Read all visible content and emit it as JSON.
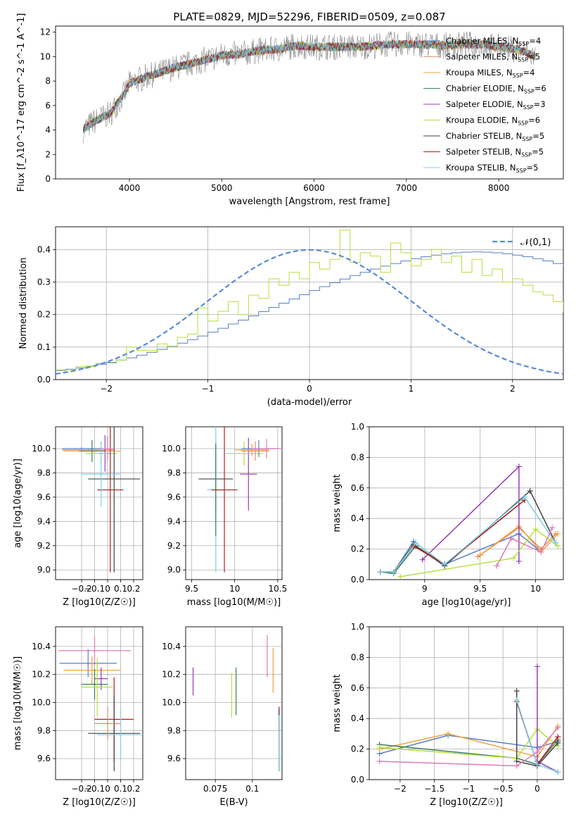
{
  "title": "PLATE=0829, MJD=52296, FIBERID=0509, z=0.087",
  "colors": {
    "Chabrier MILES": "#5a7fc8",
    "Salpeter MILES": "#e08c6a",
    "Kroupa MILES": "#f0a33a",
    "Chabrier ELODIE": "#3c7f5a",
    "Salpeter ELODIE": "#9a3ab4",
    "Kroupa ELODIE": "#b4e03c",
    "Chabrier STELIB": "#444444",
    "Salpeter STELIB": "#b41e1e",
    "Kroupa STELIB": "#7ad0e6",
    "pink": "#e07ab8",
    "normal": "#5a8ad6"
  },
  "chart_data": [
    {
      "type": "line",
      "panel": "spectrum",
      "xlabel": "wavelength [Angstrom, rest frame]",
      "ylabel": "Flux [f_λ10^-17 erg cm^-2 s^-1 A^-1]",
      "xlim": [
        3200,
        8700
      ],
      "ylim": [
        0,
        12.5
      ],
      "xticks": [
        4000,
        5000,
        6000,
        7000,
        8000
      ],
      "yticks": [
        0,
        2,
        4,
        6,
        8,
        10,
        12
      ],
      "grid": false,
      "legend_position": "right",
      "legend": [
        {
          "name": "Chabrier MILES",
          "nssp": "4"
        },
        {
          "name": "Salpeter MILES",
          "nssp": "5"
        },
        {
          "name": "Kroupa MILES",
          "nssp": "4"
        },
        {
          "name": "Chabrier ELODIE",
          "nssp": "6"
        },
        {
          "name": "Salpeter ELODIE",
          "nssp": "3"
        },
        {
          "name": "Kroupa ELODIE",
          "nssp": "6"
        },
        {
          "name": "Chabrier STELIB",
          "nssp": "5"
        },
        {
          "name": "Salpeter STELIB",
          "nssp": "5"
        },
        {
          "name": "Kroupa STELIB",
          "nssp": "5"
        }
      ],
      "continuum": {
        "x": [
          3500,
          3600,
          3700,
          3800,
          3850,
          3950,
          4000,
          4100,
          4200,
          4300,
          4400,
          4500,
          4700,
          4900,
          5000,
          5200,
          5400,
          5600,
          5800,
          6000,
          6200,
          6500,
          6800,
          7000,
          7200,
          7400,
          7600,
          7800,
          8000,
          8200,
          8400
        ],
        "y": [
          4.0,
          4.6,
          5.0,
          5.4,
          6.0,
          7.0,
          7.8,
          8.1,
          8.4,
          8.6,
          8.9,
          9.1,
          9.5,
          9.9,
          10.1,
          10.2,
          10.5,
          10.6,
          10.9,
          10.8,
          10.8,
          10.8,
          11.0,
          11.0,
          11.0,
          10.9,
          11.0,
          11.0,
          10.8,
          10.6,
          10.0
        ]
      }
    },
    {
      "type": "histogram",
      "panel": "residuals",
      "xlabel": "(data-model)/error",
      "ylabel": "Normed distribution",
      "xlim": [
        -2.5,
        2.5
      ],
      "ylim": [
        0,
        0.47
      ],
      "xticks": [
        -2,
        -1,
        0,
        1,
        2
      ],
      "yticks": [
        0.0,
        0.1,
        0.2,
        0.3,
        0.4
      ],
      "grid": true,
      "legend": "𝒩(0,1)",
      "bin_width": 0.1,
      "series": [
        {
          "color": "Chabrier MILES",
          "values": [
            0.028,
            0.032,
            0.036,
            0.041,
            0.047,
            0.053,
            0.06,
            0.067,
            0.075,
            0.084,
            0.093,
            0.102,
            0.112,
            0.123,
            0.134,
            0.146,
            0.158,
            0.171,
            0.183,
            0.196,
            0.209,
            0.222,
            0.235,
            0.248,
            0.261,
            0.274,
            0.286,
            0.298,
            0.309,
            0.32,
            0.33,
            0.34,
            0.349,
            0.357,
            0.365,
            0.372,
            0.378,
            0.383,
            0.387,
            0.39,
            0.392,
            0.393,
            0.392,
            0.39,
            0.387,
            0.383,
            0.378,
            0.372,
            0.365,
            0.357,
            0.349
          ]
        },
        {
          "color": "Kroupa ELODIE",
          "values": [
            0.03,
            0.03,
            0.04,
            0.04,
            0.05,
            0.05,
            0.06,
            0.1,
            0.09,
            0.09,
            0.11,
            0.1,
            0.13,
            0.14,
            0.22,
            0.18,
            0.21,
            0.24,
            0.2,
            0.26,
            0.25,
            0.31,
            0.29,
            0.33,
            0.31,
            0.36,
            0.34,
            0.37,
            0.46,
            0.36,
            0.39,
            0.38,
            0.33,
            0.42,
            0.39,
            0.35,
            0.37,
            0.4,
            0.36,
            0.38,
            0.33,
            0.37,
            0.32,
            0.34,
            0.3,
            0.31,
            0.29,
            0.27,
            0.26,
            0.24,
            0.21
          ]
        }
      ],
      "normal_curve": {
        "mean": 0,
        "sigma": 1
      }
    },
    {
      "type": "errorbar",
      "panel": "age-vs-Z",
      "xlabel": "Z [log10(Z/Z☉)]",
      "ylabel": "age  [log10(age/yr)]",
      "xlim": [
        -0.4,
        0.27
      ],
      "ylim": [
        8.92,
        10.18
      ],
      "xticks": [
        -0.2,
        -0.1,
        0.0,
        0.1,
        0.2
      ],
      "yticks": [
        9.0,
        9.2,
        9.4,
        9.6,
        9.8,
        10.0
      ],
      "points": [
        {
          "c": "Chabrier MILES",
          "x": -0.2,
          "xe": 0.15,
          "y": 10.0,
          "ye": 0.01
        },
        {
          "c": "Salpeter MILES",
          "x": -0.15,
          "xe": 0.2,
          "y": 9.99,
          "ye": 0.01
        },
        {
          "c": "Kroupa MILES",
          "x": -0.12,
          "xe": 0.22,
          "y": 9.98,
          "ye": 0.01
        },
        {
          "c": "Chabrier ELODIE",
          "x": -0.12,
          "xe": 0.1,
          "y": 9.98,
          "ye": 0.09
        },
        {
          "c": "Salpeter ELODIE",
          "x": -0.02,
          "xe": 0.05,
          "y": 9.96,
          "ye": 0.15
        },
        {
          "c": "Kroupa ELODIE",
          "x": -0.05,
          "xe": 0.12,
          "y": 9.96,
          "ye": 0.1
        },
        {
          "c": "Chabrier STELIB",
          "x": 0.05,
          "xe": 0.2,
          "y": 9.75,
          "ye": 0.77
        },
        {
          "c": "Salpeter STELIB",
          "x": 0.02,
          "xe": 0.1,
          "y": 9.66,
          "ye": 0.68
        },
        {
          "c": "Kroupa STELIB",
          "x": -0.05,
          "xe": 0.15,
          "y": 9.79,
          "ye": 0.27
        },
        {
          "c": "pink",
          "x": 0.0,
          "xe": 0.05,
          "y": 10.0,
          "ye": 0.1
        }
      ]
    },
    {
      "type": "errorbar",
      "panel": "age-vs-mass",
      "xlabel": "mass [log10(M/M☉)]",
      "ylabel": "",
      "xlim": [
        9.43,
        10.55
      ],
      "ylim": [
        8.92,
        10.18
      ],
      "xticks": [
        9.5,
        10.0,
        10.5
      ],
      "yticks": [
        9.0,
        9.2,
        9.4,
        9.6,
        9.8,
        10.0
      ],
      "points": [
        {
          "c": "Chabrier STELIB",
          "x": 9.78,
          "xe": 0.2,
          "y": 9.75,
          "ye": 0.3
        },
        {
          "c": "Kroupa STELIB",
          "x": 9.78,
          "xe": 0.1,
          "y": 9.66,
          "ye": 0.68
        },
        {
          "c": "Chabrier ELODIE",
          "x": 9.78,
          "xe": 0.03,
          "y": 9.66,
          "ye": 0.38
        },
        {
          "c": "Salpeter STELIB",
          "x": 9.88,
          "xe": 0.15,
          "y": 9.66,
          "ye": 0.68
        },
        {
          "c": "Salpeter ELODIE",
          "x": 10.16,
          "xe": 0.1,
          "y": 9.79,
          "ye": 0.3
        },
        {
          "c": "Kroupa ELODIE",
          "x": 10.11,
          "xe": 0.22,
          "y": 9.96,
          "ye": 0.1
        },
        {
          "c": "Kroupa MILES",
          "x": 10.2,
          "xe": 0.2,
          "y": 9.99,
          "ye": 0.05
        },
        {
          "c": "Chabrier MILES",
          "x": 10.28,
          "xe": 0.2,
          "y": 10.0,
          "ye": 0.07
        },
        {
          "c": "Salpeter MILES",
          "x": 10.24,
          "xe": 0.16,
          "y": 9.98,
          "ye": 0.08
        },
        {
          "c": "pink",
          "x": 10.37,
          "xe": 0.18,
          "y": 10.0,
          "ye": 0.08
        }
      ]
    },
    {
      "type": "line",
      "panel": "weight-vs-age",
      "xlabel": "age  [log10(age/yr)]",
      "ylabel": "mass weight",
      "xlim": [
        8.5,
        10.25
      ],
      "ylim": [
        0.0,
        1.0
      ],
      "xticks": [
        9.0,
        9.5,
        10.0
      ],
      "yticks": [
        0.0,
        0.2,
        0.4,
        0.6,
        0.8,
        1.0
      ],
      "series": [
        {
          "c": "Chabrier MILES",
          "x": [
            8.6,
            8.72,
            8.9,
            9.18,
            9.85,
            10.02
          ],
          "y": [
            0.05,
            0.05,
            0.25,
            0.1,
            0.3,
            0.2
          ]
        },
        {
          "c": "Salpeter MILES",
          "x": [
            9.48,
            9.85,
            10.05,
            10.18
          ],
          "y": [
            0.15,
            0.34,
            0.2,
            0.3
          ]
        },
        {
          "c": "Kroupa MILES",
          "x": [
            9.5,
            9.85,
            10.05,
            10.2
          ],
          "y": [
            0.16,
            0.35,
            0.18,
            0.3
          ]
        },
        {
          "c": "Chabrier ELODIE",
          "x": [
            8.6,
            8.72,
            8.92,
            9.18,
            9.9
          ],
          "y": [
            0.05,
            0.04,
            0.22,
            0.1,
            0.52
          ]
        },
        {
          "c": "Salpeter ELODIE",
          "x": [
            8.98,
            9.85,
            9.85
          ],
          "y": [
            0.13,
            0.74,
            0.12
          ]
        },
        {
          "c": "Kroupa ELODIE",
          "x": [
            8.78,
            9.8,
            10.0,
            10.2
          ],
          "y": [
            0.02,
            0.14,
            0.33,
            0.22
          ]
        },
        {
          "c": "Chabrier STELIB",
          "x": [
            8.6,
            8.72,
            8.9,
            9.18,
            9.95,
            10.18
          ],
          "y": [
            0.05,
            0.05,
            0.23,
            0.09,
            0.58,
            0.24
          ]
        },
        {
          "c": "Salpeter STELIB",
          "x": [
            8.6,
            8.72,
            8.9,
            9.18,
            9.9
          ],
          "y": [
            0.05,
            0.05,
            0.22,
            0.1,
            0.52
          ]
        },
        {
          "c": "Kroupa STELIB",
          "x": [
            8.6,
            8.72,
            8.92,
            9.18,
            9.9,
            10.18
          ],
          "y": [
            0.05,
            0.05,
            0.24,
            0.1,
            0.54,
            0.24
          ]
        },
        {
          "c": "pink",
          "x": [
            9.65,
            9.78,
            10.05,
            10.15
          ],
          "y": [
            0.09,
            0.27,
            0.18,
            0.34
          ]
        }
      ]
    },
    {
      "type": "errorbar",
      "panel": "mass-vs-Z",
      "xlabel": "Z [log10(Z/Z☉)]",
      "ylabel": "mass [log10(M/M☉)]",
      "xlim": [
        -0.4,
        0.27
      ],
      "ylim": [
        9.45,
        10.54
      ],
      "xticks": [
        -0.2,
        -0.1,
        0.0,
        0.1,
        0.2
      ],
      "yticks": [
        9.6,
        9.8,
        10.0,
        10.2,
        10.4
      ],
      "points": [
        {
          "c": "pink",
          "x": -0.1,
          "xe": 0.28,
          "y": 10.37,
          "ye": 0.1
        },
        {
          "c": "Chabrier MILES",
          "x": -0.15,
          "xe": 0.22,
          "y": 10.28,
          "ye": 0.1
        },
        {
          "c": "Kroupa MILES",
          "x": -0.12,
          "xe": 0.22,
          "y": 10.23,
          "ye": 0.1
        },
        {
          "c": "Salpeter ELODIE",
          "x": -0.05,
          "xe": 0.05,
          "y": 10.17,
          "ye": 0.08
        },
        {
          "c": "Chabrier ELODIE",
          "x": -0.1,
          "xe": 0.1,
          "y": 10.13,
          "ye": 0.11
        },
        {
          "c": "Kroupa ELODIE",
          "x": -0.08,
          "xe": 0.12,
          "y": 10.11,
          "ye": 0.21
        },
        {
          "c": "Salpeter STELIB",
          "x": 0.05,
          "xe": 0.15,
          "y": 9.88,
          "ye": 0.3
        },
        {
          "c": "Chabrier STELIB",
          "x": 0.05,
          "xe": 0.2,
          "y": 9.78,
          "ye": 0.27
        },
        {
          "c": "Kroupa STELIB",
          "x": 0.1,
          "xe": 0.18,
          "y": 9.77,
          "ye": 0.18
        },
        {
          "c": "Salpeter MILES",
          "x": 0.0,
          "xe": 0.1,
          "y": 9.85,
          "ye": 0.12
        }
      ]
    },
    {
      "type": "errorbar",
      "panel": "mass-vs-EBV",
      "xlabel": "E(B-V)",
      "ylabel": "",
      "xlim": [
        0.055,
        0.12
      ],
      "ylim": [
        9.45,
        10.54
      ],
      "xticks": [
        0.075,
        0.1
      ],
      "yticks": [
        9.6,
        9.8,
        10.0,
        10.2,
        10.4
      ],
      "points": [
        {
          "c": "Salpeter ELODIE",
          "x": 0.06,
          "y": 10.15,
          "ye": 0.1
        },
        {
          "c": "Kroupa ELODIE",
          "x": 0.086,
          "y": 10.05,
          "ye": 0.16
        },
        {
          "c": "Chabrier ELODIE",
          "x": 0.089,
          "y": 10.08,
          "ye": 0.17
        },
        {
          "c": "pink",
          "x": 0.11,
          "y": 10.33,
          "ye": 0.15
        },
        {
          "c": "Kroupa MILES",
          "x": 0.114,
          "y": 10.23,
          "ye": 0.16
        },
        {
          "c": "Salpeter STELIB",
          "x": 0.118,
          "y": 9.88,
          "ye": 0.09
        },
        {
          "c": "Chabrier STELIB",
          "x": 0.118,
          "y": 9.73,
          "ye": 0.22
        },
        {
          "c": "Kroupa STELIB",
          "x": 0.118,
          "y": 9.71,
          "ye": 0.2
        }
      ]
    },
    {
      "type": "line",
      "panel": "weight-vs-Z",
      "xlabel": "Z [log10(Z/Z☉)]",
      "ylabel": "mass weight",
      "xlim": [
        -2.45,
        0.38
      ],
      "ylim": [
        0.0,
        1.0
      ],
      "xticks": [
        -2.0,
        -1.5,
        -1.0,
        -0.5,
        0.0
      ],
      "yticks": [
        0.0,
        0.2,
        0.4,
        0.6,
        0.8,
        1.0
      ],
      "series": [
        {
          "c": "Chabrier MILES",
          "x": [
            -2.3,
            -1.3,
            0.0,
            0.3
          ],
          "y": [
            0.17,
            0.29,
            0.21,
            0.25
          ]
        },
        {
          "c": "Kroupa MILES",
          "x": [
            -2.3,
            -1.3,
            0.0,
            0.3
          ],
          "y": [
            0.2,
            0.3,
            0.15,
            0.35
          ]
        },
        {
          "c": "Chabrier ELODIE",
          "x": [
            -2.3,
            -0.3,
            0.0,
            0.3
          ],
          "y": [
            0.23,
            0.14,
            0.1,
            0.26
          ]
        },
        {
          "c": "Kroupa ELODIE",
          "x": [
            -2.3,
            -0.3,
            0.0,
            0.3
          ],
          "y": [
            0.21,
            0.14,
            0.33,
            0.22
          ]
        },
        {
          "c": "Salpeter ELODIE",
          "x": [
            0.0,
            0.0,
            0.3
          ],
          "y": [
            0.74,
            0.12,
            0.05
          ]
        },
        {
          "c": "Chabrier STELIB",
          "x": [
            -0.3,
            -0.3,
            0.0,
            0.3
          ],
          "y": [
            0.58,
            0.12,
            0.09,
            0.24
          ]
        },
        {
          "c": "Salpeter STELIB",
          "x": [
            -0.3,
            0.0,
            0.3
          ],
          "y": [
            0.51,
            0.1,
            0.28
          ]
        },
        {
          "c": "Kroupa STELIB",
          "x": [
            -0.3,
            0.0,
            0.3
          ],
          "y": [
            0.52,
            0.1,
            0.05
          ]
        },
        {
          "c": "pink",
          "x": [
            -2.3,
            -0.3,
            0.0,
            0.3
          ],
          "y": [
            0.12,
            0.09,
            0.18,
            0.34
          ]
        }
      ]
    }
  ]
}
